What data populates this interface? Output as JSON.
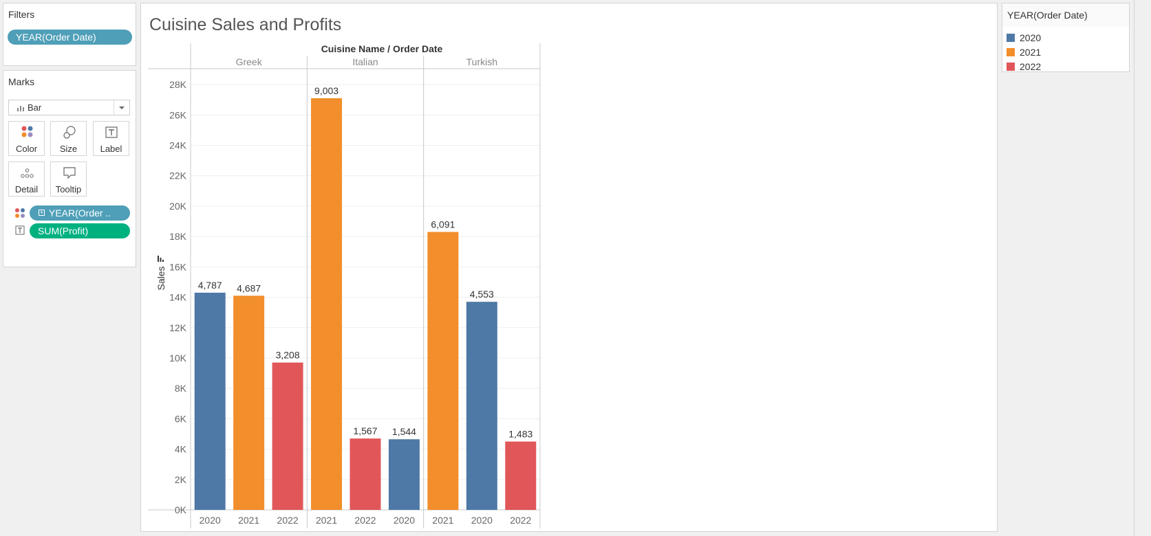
{
  "filters": {
    "title": "Filters",
    "pill": "YEAR(Order Date)"
  },
  "marks": {
    "title": "Marks",
    "mark_type": "Bar",
    "cards": [
      "Color",
      "Size",
      "Label",
      "Detail",
      "Tooltip"
    ],
    "fields": [
      {
        "label": "YEAR(Order ..",
        "icon": "color-dots-icon"
      },
      {
        "label": "SUM(Profit)",
        "icon": "label-t-icon"
      }
    ]
  },
  "legend": {
    "title": "YEAR(Order Date)",
    "items": [
      {
        "label": "2020",
        "color": "#4e79a7"
      },
      {
        "label": "2021",
        "color": "#f28e2b"
      },
      {
        "label": "2022",
        "color": "#e15759"
      }
    ]
  },
  "chart_data": {
    "type": "bar",
    "title": "Cuisine Sales and Profits",
    "header_label": "Cuisine Name  /  Order Date",
    "ylabel": "Sales",
    "ylim": [
      0,
      29000
    ],
    "yticks": [
      0,
      2000,
      4000,
      6000,
      8000,
      10000,
      12000,
      14000,
      16000,
      18000,
      20000,
      22000,
      24000,
      26000,
      28000
    ],
    "ytick_labels": [
      "0K",
      "2K",
      "4K",
      "6K",
      "8K",
      "10K",
      "12K",
      "14K",
      "16K",
      "18K",
      "20K",
      "22K",
      "24K",
      "26K",
      "28K"
    ],
    "grid": true,
    "legend_placement": "right",
    "groups": [
      {
        "name": "Greek",
        "bars": [
          {
            "year": "2020",
            "sales": 14300,
            "profit_label": "4,787",
            "color": "#4e79a7"
          },
          {
            "year": "2021",
            "sales": 14100,
            "profit_label": "4,687",
            "color": "#f28e2b"
          },
          {
            "year": "2022",
            "sales": 9700,
            "profit_label": "3,208",
            "color": "#e15759"
          }
        ]
      },
      {
        "name": "Italian",
        "bars": [
          {
            "year": "2021",
            "sales": 27100,
            "profit_label": "9,003",
            "color": "#f28e2b"
          },
          {
            "year": "2022",
            "sales": 4700,
            "profit_label": "1,567",
            "color": "#e15759"
          },
          {
            "year": "2020",
            "sales": 4650,
            "profit_label": "1,544",
            "color": "#4e79a7"
          }
        ]
      },
      {
        "name": "Turkish",
        "bars": [
          {
            "year": "2021",
            "sales": 18300,
            "profit_label": "6,091",
            "color": "#f28e2b"
          },
          {
            "year": "2020",
            "sales": 13700,
            "profit_label": "4,553",
            "color": "#4e79a7"
          },
          {
            "year": "2022",
            "sales": 4500,
            "profit_label": "1,483",
            "color": "#e15759"
          }
        ]
      }
    ]
  }
}
